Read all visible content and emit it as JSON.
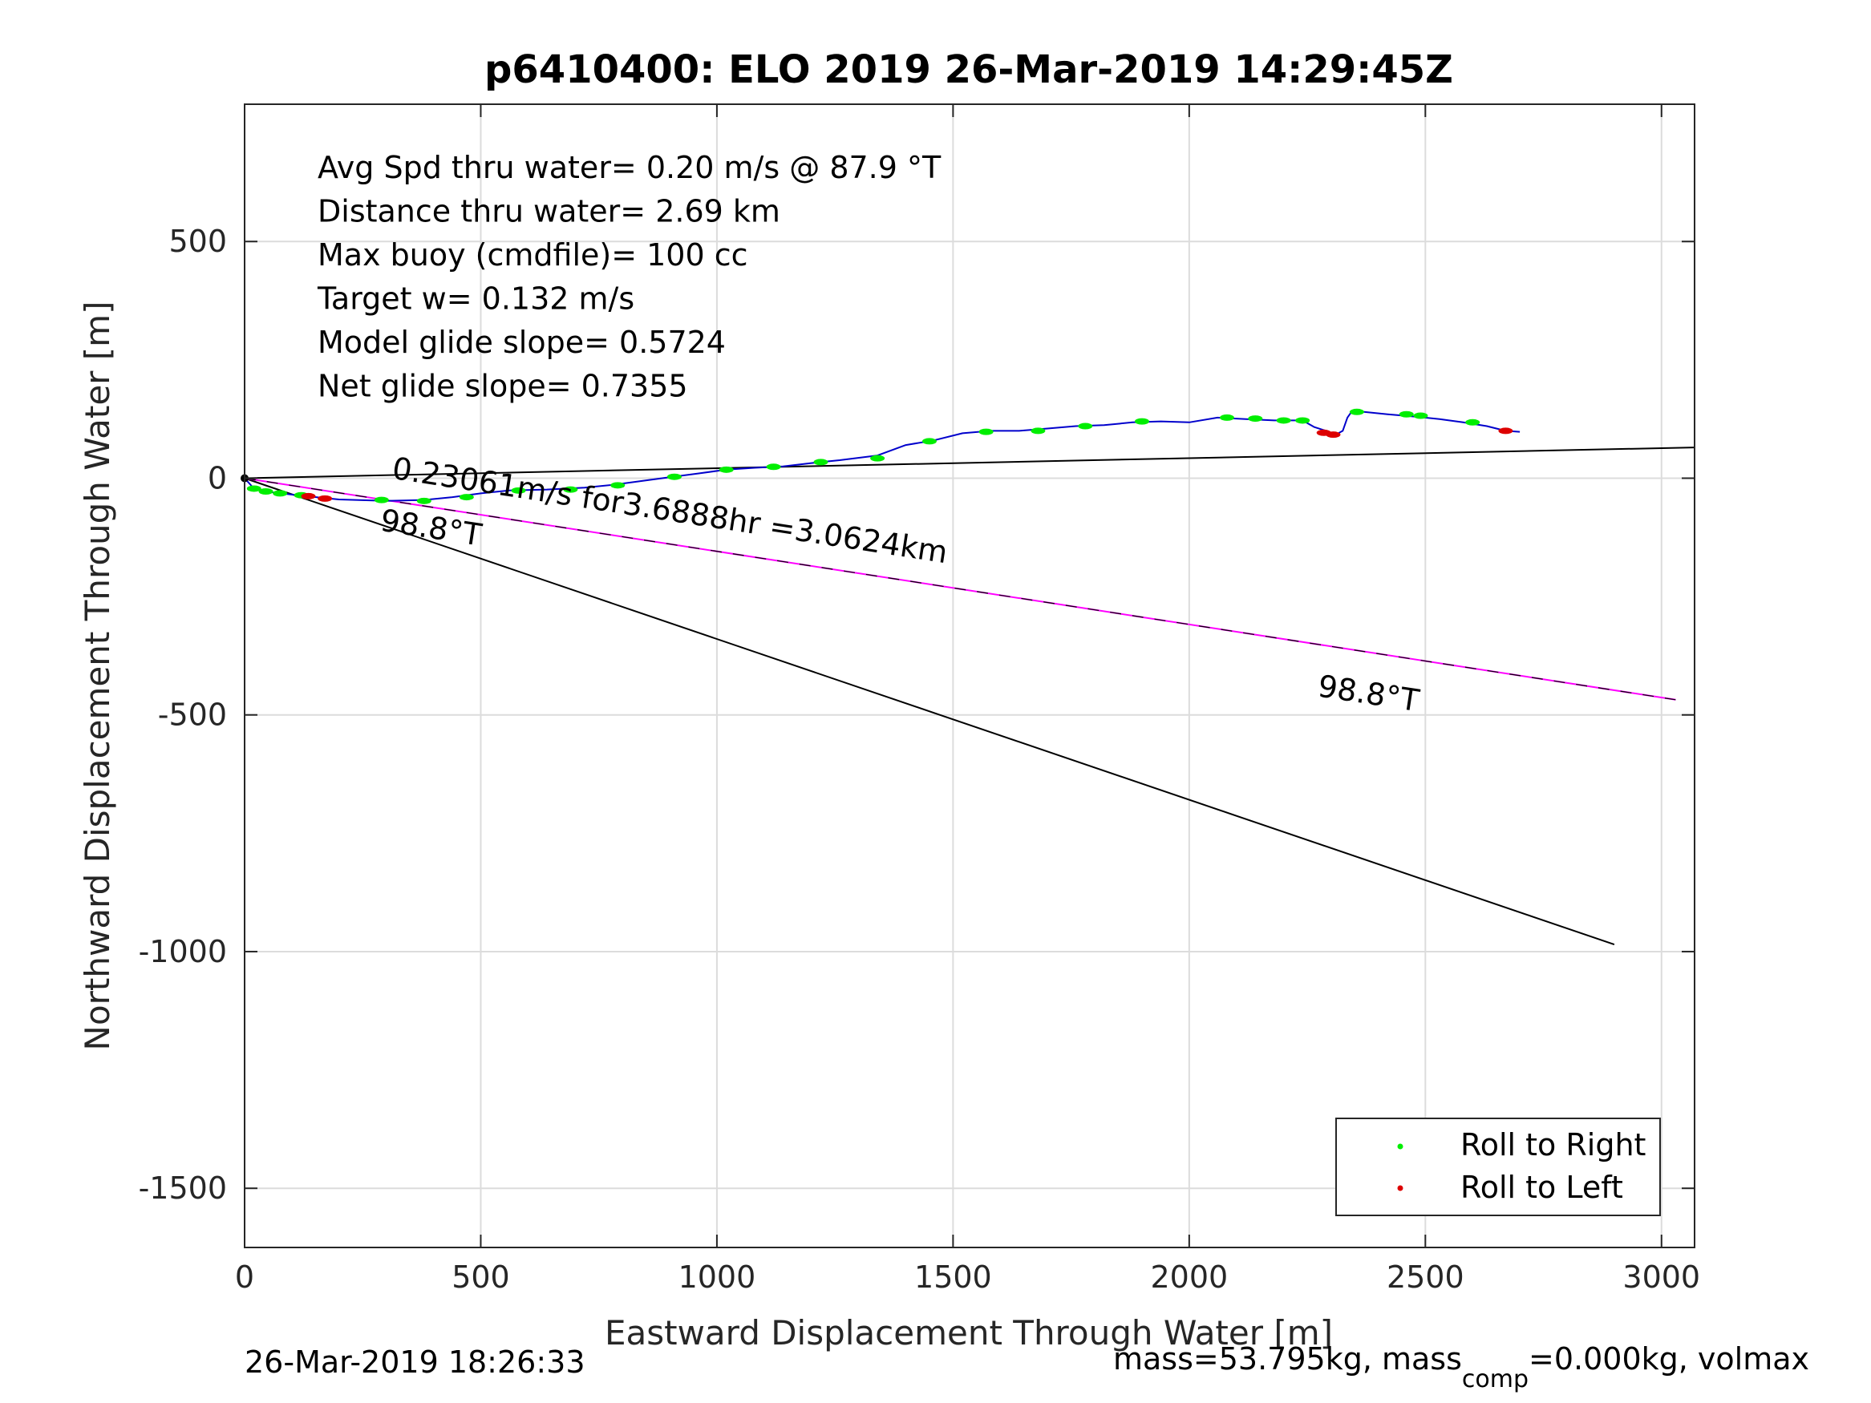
{
  "chart_data": {
    "type": "line",
    "title": "p6410400: ELO 2019 26-Mar-2019 14:29:45Z",
    "xlabel": "Eastward Displacement Through Water [m]",
    "ylabel": "Northward Displacement Through Water [m]",
    "xlim": [
      0,
      3070
    ],
    "ylim": [
      -1625,
      790
    ],
    "xticks": [
      0,
      500,
      1000,
      1500,
      2000,
      2500,
      3000
    ],
    "yticks": [
      500,
      0,
      -500,
      -1000,
      -1500
    ],
    "xtick_labels": [
      "0",
      "500",
      "1000",
      "1500",
      "2000",
      "2500",
      "3000"
    ],
    "ytick_labels": [
      "500",
      "0",
      "-500",
      "-1000",
      "-1500"
    ],
    "grid": true,
    "legend_position": "bottom-right",
    "info_lines": [
      "Avg Spd thru water=  0.20 m/s @  87.9 °T",
      "Distance thru water=  2.69 km",
      "Max buoy (cmdfile)= 100 cc",
      "Target w= 0.132 m/s",
      "Model glide slope= 0.5724",
      "Net glide slope= 0.7355"
    ],
    "annotations": [
      {
        "text": "0.23061m/s for3.6888hr =3.0624km",
        "x": 310,
        "y": 0,
        "angle": 8.7
      },
      {
        "text": "98.8°T",
        "x": 285,
        "y": -110,
        "angle": 8.7
      },
      {
        "text": "98.8°T",
        "x": 2270,
        "y": -460,
        "angle": 8.7
      }
    ],
    "series": [
      {
        "name": "track",
        "color": "#0000cc",
        "x": [
          0,
          20,
          60,
          130,
          200,
          300,
          380,
          440,
          500,
          560,
          640,
          720,
          780,
          840,
          900,
          960,
          1020,
          1080,
          1140,
          1200,
          1260,
          1340,
          1400,
          1460,
          1520,
          1580,
          1640,
          1700,
          1760,
          1820,
          1880,
          1940,
          2000,
          2060,
          2120,
          2180,
          2240,
          2265,
          2290,
          2310,
          2325,
          2335,
          2345,
          2370,
          2420,
          2480,
          2530,
          2580,
          2630,
          2670,
          2700
        ],
        "y": [
          0,
          -22,
          -30,
          -38,
          -45,
          -48,
          -46,
          -40,
          -32,
          -26,
          -24,
          -20,
          -14,
          -6,
          2,
          10,
          18,
          22,
          25,
          32,
          38,
          48,
          70,
          80,
          95,
          100,
          100,
          105,
          110,
          112,
          118,
          120,
          118,
          128,
          125,
          122,
          122,
          108,
          100,
          92,
          100,
          128,
          142,
          140,
          135,
          130,
          125,
          118,
          110,
          100,
          98
        ]
      },
      {
        "name": "current",
        "color": "#000000",
        "x": [
          0,
          3070
        ],
        "y": [
          0,
          65
        ]
      },
      {
        "name": "heading-line",
        "color": "#000000",
        "x": [
          0,
          2900
        ],
        "y": [
          0,
          -985
        ]
      },
      {
        "name": "drift",
        "color": "#ff00ff",
        "x": [
          0,
          3030
        ],
        "y": [
          0,
          -468
        ]
      },
      {
        "name": "Roll to Right",
        "color": "#00ee00",
        "x": [
          20,
          45,
          75,
          120,
          290,
          380,
          470,
          580,
          690,
          790,
          910,
          1020,
          1120,
          1220,
          1340,
          1450,
          1570,
          1680,
          1780,
          1900,
          2080,
          2140,
          2200,
          2240,
          2355,
          2460,
          2490,
          2600
        ],
        "y": [
          -22,
          -28,
          -32,
          -36,
          -46,
          -48,
          -40,
          -26,
          -24,
          -15,
          3,
          18,
          24,
          34,
          42,
          78,
          98,
          100,
          110,
          120,
          128,
          126,
          122,
          122,
          140,
          135,
          132,
          118
        ]
      },
      {
        "name": "Roll to Left",
        "color": "#dd0000",
        "x": [
          135,
          170,
          2285,
          2305,
          2670
        ],
        "y": [
          -38,
          -43,
          96,
          92,
          100
        ]
      }
    ],
    "legend": [
      {
        "label": "Roll to Right",
        "color": "#00ee00"
      },
      {
        "label": "Roll to Left",
        "color": "#dd0000"
      }
    ],
    "footer_left": "26-Mar-2019 18:26:33",
    "footer_right": {
      "prefix": "mass=53.795kg, mass",
      "sub": "comp",
      "suffix": "=0.000kg, volmax"
    }
  }
}
